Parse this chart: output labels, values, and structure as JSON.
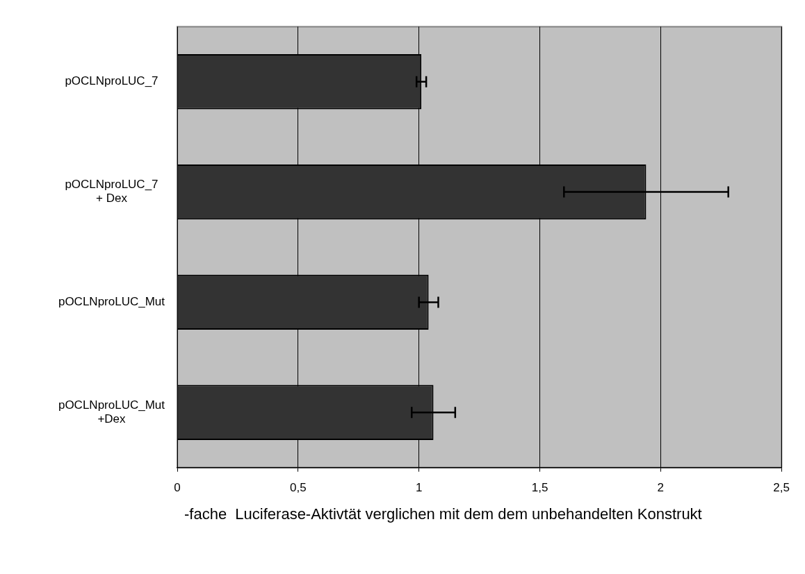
{
  "chart_data": {
    "type": "bar",
    "orientation": "horizontal",
    "categories": [
      "pOCLNproLUC_7",
      "pOCLNproLUC_7\n+ Dex",
      "pOCLNproLUC_Mut",
      "pOCLNproLUC_Mut\n+Dex"
    ],
    "values": [
      1.01,
      1.94,
      1.04,
      1.06
    ],
    "errors": [
      [
        0.99,
        1.03
      ],
      [
        1.6,
        2.28
      ],
      [
        1.0,
        1.08
      ],
      [
        0.97,
        1.15
      ]
    ],
    "color": "#333333",
    "xlim": [
      0,
      2.5
    ],
    "xticks": [
      {
        "value": 0,
        "label": "0"
      },
      {
        "value": 0.5,
        "label": "0,5"
      },
      {
        "value": 1,
        "label": "1"
      },
      {
        "value": 1.5,
        "label": "1,5"
      },
      {
        "value": 2,
        "label": "2"
      },
      {
        "value": 2.5,
        "label": "2,5"
      }
    ],
    "xlabel": "-fache  Luciferase-Aktivtät verglichen mit dem dem unbehandelten Konstrukt",
    "grid": "x",
    "legend": false
  }
}
